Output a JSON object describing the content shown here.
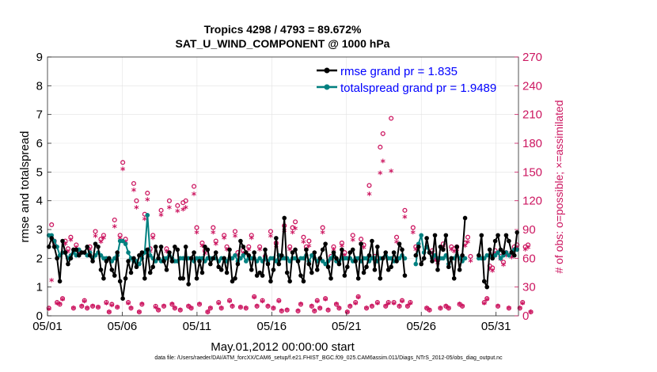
{
  "chart_data": {
    "type": "line",
    "title": "Tropics 4298 / 4793 = 89.672%",
    "subtitle": "SAT_U_WIND_COMPONENT @ 1000 hPa",
    "xlabel": "May.01,2012 00:00:00 start",
    "ylabel_left": "rmse and totalspread",
    "ylabel_right": "# of obs: o=possible; ×=assimilated",
    "ylim_left": [
      0,
      9
    ],
    "ylim_right": [
      0,
      270
    ],
    "xlim": [
      0,
      31.5
    ],
    "x_ticks": [
      {
        "day": 0,
        "label": "05/01"
      },
      {
        "day": 5,
        "label": "05/06"
      },
      {
        "day": 10,
        "label": "05/11"
      },
      {
        "day": 15,
        "label": "05/16"
      },
      {
        "day": 20,
        "label": "05/21"
      },
      {
        "day": 25,
        "label": "05/26"
      },
      {
        "day": 30,
        "label": "05/31"
      }
    ],
    "y_ticks_left": [
      "0",
      "1",
      "2",
      "3",
      "4",
      "5",
      "6",
      "7",
      "8",
      "9"
    ],
    "y_ticks_right": [
      "0",
      "30",
      "60",
      "90",
      "120",
      "150",
      "180",
      "210",
      "240",
      "270"
    ],
    "legend": [
      {
        "name": "rmse",
        "label": "rmse grand pr = 1.835",
        "color": "#000000"
      },
      {
        "name": "totalspread",
        "label": "totalspread grand pr = 1.9489",
        "color": "#008080"
      }
    ],
    "obs_color": "#cc1660",
    "rmse": [
      2.4,
      2.7,
      2.4,
      2.0,
      1.2,
      2.6,
      2.2,
      1.8,
      2.0,
      2.3,
      2.3,
      2.1,
      2.2,
      2.2,
      2.4,
      2.1,
      1.9,
      2.5,
      2.4,
      1.6,
      1.3,
      1.9,
      2.0,
      1.6,
      1.4,
      2.2,
      1.2,
      0.6,
      1.3,
      1.9,
      1.5,
      2.0,
      1.7,
      2.1,
      2.2,
      1.3,
      2.3,
      1.5,
      1.7,
      2.4,
      2.0,
      2.4,
      1.9,
      1.6,
      2.2,
      1.9,
      2.4,
      2.3,
      1.3,
      1.3,
      2.4,
      1.1,
      2.0,
      2.2,
      1.3,
      1.9,
      1.5,
      2.4,
      2.3,
      1.8,
      2.0,
      2.2,
      1.7,
      1.6,
      2.0,
      1.5,
      2.3,
      1.2,
      1.3,
      1.8,
      2.6,
      2.4,
      2.2,
      2.1,
      1.6,
      2.2,
      1.4,
      1.5,
      1.4,
      2.3,
      1.8,
      1.2,
      1.6,
      2.7,
      1.8,
      2.1,
      3.4,
      1.5,
      1.2,
      2.2,
      2.3,
      1.9,
      1.4,
      1.2,
      2.3,
      1.8,
      1.5,
      2.2,
      1.6,
      2.0,
      2.3,
      2.5,
      1.7,
      1.3,
      2.2,
      2.0,
      1.8,
      2.3,
      1.4,
      1.7,
      2.2,
      2.3,
      1.9,
      1.3,
      2.5,
      1.5,
      1.7,
      2.1,
      2.6,
      1.6,
      2.4,
      1.3,
      2.0,
      2.2,
      1.6,
      1.7,
      2.2,
      1.9,
      2.5,
      2.3,
      1.4,
      null,
      null,
      null,
      2.1,
      2.4,
      1.8,
      2.0,
      2.7,
      2.2,
      1.9,
      2.8,
      1.6,
      2.4,
      2.3,
      2.8,
      1.7,
      2.0,
      1.3,
      2.4,
      1.6,
      2.1,
      3.4,
      null,
      null,
      null,
      null,
      2.1,
      2.8,
      1.2,
      1.0,
      2.3,
      2.0,
      2.6,
      2.8,
      2.3,
      2.2,
      2.8,
      2.6,
      2.2,
      2.1,
      2.9
    ],
    "spread": [
      2.8,
      2.8,
      2.6,
      2.4,
      2.1,
      2.2,
      2.2,
      2.0,
      2.1,
      2.2,
      2.1,
      2.3,
      2.2,
      2.2,
      2.1,
      2.2,
      2.0,
      2.1,
      2.2,
      2.1,
      2.0,
      2.0,
      2.0,
      1.9,
      2.0,
      2.1,
      2.6,
      2.6,
      2.5,
      2.2,
      2.0,
      1.9,
      1.9,
      1.8,
      2.0,
      2.2,
      3.5,
      2.1,
      2.0,
      1.9,
      2.0,
      1.9,
      2.0,
      2.0,
      2.1,
      2.0,
      1.9,
      1.9,
      2.0,
      2.0,
      2.0,
      2.0,
      2.0,
      1.9,
      2.0,
      2.0,
      2.0,
      1.9,
      2.0,
      2.0,
      2.0,
      2.0,
      1.9,
      2.0,
      2.0,
      1.9,
      2.0,
      2.0,
      2.1,
      1.9,
      2.0,
      2.1,
      1.9,
      2.0,
      2.0,
      2.0,
      1.9,
      2.0,
      1.9,
      2.0,
      1.9,
      2.0,
      2.0,
      1.9,
      2.1,
      2.0,
      2.0,
      2.0,
      1.9,
      2.0,
      2.0,
      1.9,
      2.0,
      2.0,
      2.1,
      1.9,
      2.1,
      2.0,
      1.9,
      2.0,
      1.9,
      1.8,
      1.9,
      2.0,
      2.1,
      1.9,
      1.9,
      2.0,
      2.0,
      2.0,
      2.0,
      1.9,
      2.0,
      2.0,
      1.9,
      2.0,
      2.0,
      1.9,
      2.0,
      2.0,
      1.9,
      2.0,
      2.0,
      2.1,
      2.0,
      2.0,
      1.9,
      2.0,
      2.0,
      2.1,
      2.0,
      null,
      null,
      null,
      1.8,
      2.5,
      2.8,
      2.2,
      2.4,
      2.2,
      2.0,
      2.1,
      2.0,
      2.0,
      2.0,
      2.1,
      1.8,
      2.0,
      2.0,
      2.1,
      2.0,
      1.9,
      2.0,
      null,
      null,
      null,
      null,
      2.0,
      2.0,
      2.0,
      2.1,
      2.1,
      2.0,
      2.1,
      2.2,
      2.0,
      2.1,
      2.2,
      2.1,
      2.2,
      2.3,
      2.3
    ],
    "obs_possible": [
      8,
      95,
      78,
      14,
      12,
      18,
      78,
      70,
      82,
      8,
      74,
      68,
      10,
      16,
      8,
      72,
      10,
      88,
      9,
      80,
      84,
      14,
      4,
      12,
      100,
      9,
      84,
      160,
      80,
      14,
      8,
      138,
      120,
      4,
      12,
      106,
      128,
      70,
      84,
      10,
      6,
      110,
      10,
      70,
      120,
      12,
      8,
      115,
      6,
      118,
      120,
      10,
      8,
      135,
      92,
      12,
      76,
      68,
      4,
      8,
      92,
      78,
      14,
      8,
      84,
      72,
      16,
      10,
      88,
      66,
      9,
      68,
      8,
      72,
      84,
      20,
      10,
      72,
      16,
      62,
      10,
      88,
      8,
      76,
      16,
      5,
      94,
      6,
      72,
      92,
      98,
      5,
      12,
      82,
      72,
      78,
      10,
      5,
      16,
      8,
      92,
      18,
      6,
      62,
      72,
      12,
      8,
      76,
      66,
      4,
      10,
      84,
      14,
      20,
      80,
      74,
      8,
      136,
      10,
      62,
      14,
      176,
      190,
      10,
      14,
      206,
      14,
      82,
      10,
      16,
      110,
      10,
      14,
      92,
      72,
      null,
      null,
      null,
      8,
      6,
      68,
      62,
      58,
      8,
      75,
      10,
      8,
      72,
      70,
      72,
      12,
      10,
      76,
      82,
      62,
      null,
      null,
      null,
      null,
      14,
      18,
      52,
      50,
      68,
      10,
      62,
      56,
      66,
      8,
      64,
      72,
      74,
      8,
      14,
      72,
      74,
      4
    ],
    "obs_assimilated": [
      6,
      36,
      74,
      12,
      11,
      16,
      74,
      66,
      78,
      7,
      70,
      64,
      9,
      14,
      7,
      68,
      9,
      82,
      8,
      76,
      80,
      12,
      3,
      10,
      92,
      8,
      80,
      152,
      76,
      12,
      7,
      130,
      112,
      3,
      11,
      100,
      120,
      66,
      80,
      8,
      5,
      104,
      9,
      66,
      112,
      11,
      7,
      108,
      5,
      110,
      112,
      9,
      7,
      126,
      86,
      11,
      72,
      64,
      3,
      7,
      86,
      74,
      12,
      7,
      80,
      68,
      14,
      9,
      82,
      62,
      8,
      64,
      7,
      68,
      80,
      18,
      9,
      68,
      14,
      58,
      9,
      82,
      7,
      72,
      14,
      4,
      88,
      5,
      68,
      86,
      90,
      4,
      11,
      76,
      68,
      72,
      9,
      4,
      14,
      7,
      86,
      16,
      5,
      58,
      68,
      11,
      7,
      72,
      62,
      3,
      9,
      78,
      12,
      18,
      74,
      70,
      7,
      126,
      9,
      58,
      12,
      148,
      160,
      9,
      12,
      150,
      12,
      76,
      9,
      14,
      102,
      9,
      12,
      86,
      68,
      null,
      null,
      null,
      7,
      5,
      64,
      58,
      54,
      7,
      70,
      9,
      7,
      68,
      66,
      68,
      11,
      9,
      72,
      76,
      56,
      null,
      null,
      null,
      null,
      12,
      16,
      48,
      46,
      64,
      9,
      58,
      52,
      62,
      7,
      60,
      68,
      70,
      7,
      12,
      68,
      70,
      3
    ]
  },
  "footer": {
    "data_file": "data file: /Users/raeder/DAI/ATM_forcXX/CAM6_setup/f.e21.FHIST_BGC.f09_025.CAM6assim.011/Diags_NTrS_2012-05/obs_diag_output.nc"
  }
}
